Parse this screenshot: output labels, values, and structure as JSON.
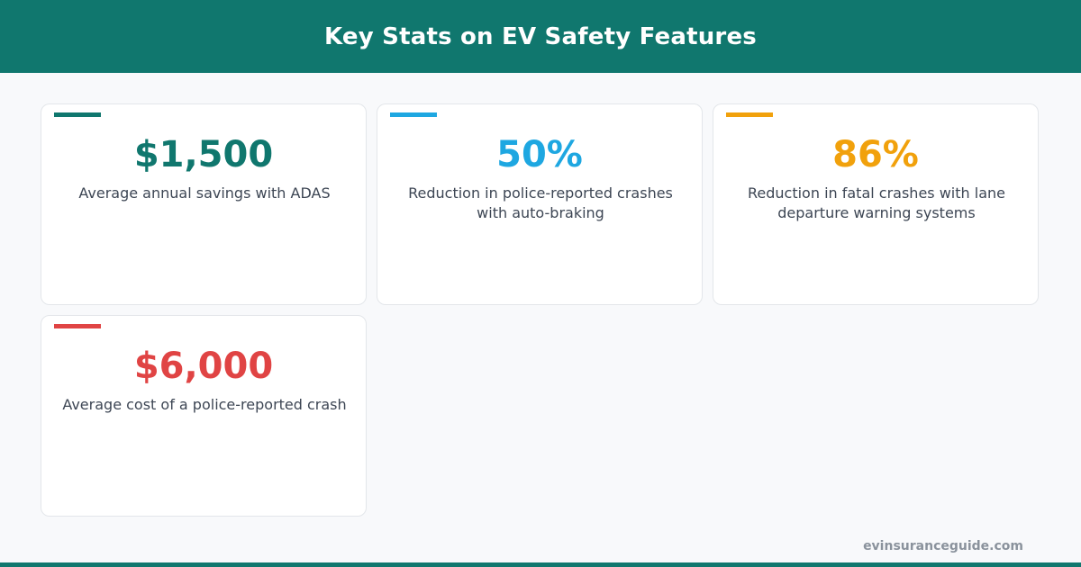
{
  "header": {
    "title": "Key Stats on EV Safety Features"
  },
  "cards": [
    {
      "value": "$1,500",
      "description": "Average annual savings with ADAS",
      "color": "#10776e"
    },
    {
      "value": "50%",
      "description": "Reduction in police-reported crashes with auto-braking",
      "color": "#1ea7e1"
    },
    {
      "value": "86%",
      "description": "Reduction in fatal crashes with lane departure warning systems",
      "color": "#f1a10c"
    },
    {
      "value": "$6,000",
      "description": "Average cost of a police-reported crash",
      "color": "#e04444"
    }
  ],
  "footer": {
    "credit": "evinsuranceguide.com"
  },
  "colors": {
    "brand": "#10776e",
    "background": "#f8f9fb",
    "text": "#3d4654",
    "credit": "#8a929c"
  }
}
